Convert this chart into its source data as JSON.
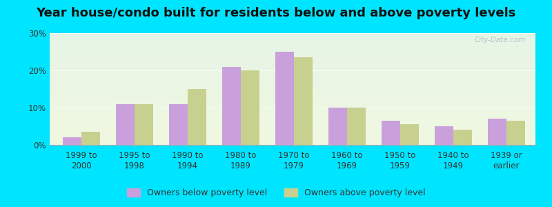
{
  "title": "Year house/condo built for residents below and above poverty levels",
  "categories": [
    "1999 to\n2000",
    "1995 to\n1998",
    "1990 to\n1994",
    "1980 to\n1989",
    "1970 to\n1979",
    "1960 to\n1969",
    "1950 to\n1959",
    "1940 to\n1949",
    "1939 or\nearlier"
  ],
  "below_poverty": [
    2,
    11,
    11,
    21,
    25,
    10,
    6.5,
    5,
    7
  ],
  "above_poverty": [
    3.5,
    11,
    15,
    20,
    23.5,
    10,
    5.5,
    4,
    6.5
  ],
  "below_color": "#c9a0dc",
  "above_color": "#c8d090",
  "ylim": [
    0,
    30
  ],
  "yticks": [
    0,
    10,
    20,
    30
  ],
  "ytick_labels": [
    "0%",
    "10%",
    "20%",
    "30%"
  ],
  "legend_below": "Owners below poverty level",
  "legend_above": "Owners above poverty level",
  "bg_color_outer": "#00e5ff",
  "bg_grad_top": "#e6f5e6",
  "bg_grad_bottom": "#f0f8e0",
  "title_fontsize": 13,
  "tick_fontsize": 8.5,
  "legend_fontsize": 9,
  "bar_width": 0.35,
  "xlim_left": -0.6,
  "xlim_right": 8.55
}
